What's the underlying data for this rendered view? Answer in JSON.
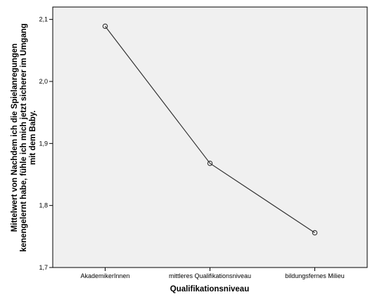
{
  "chart_data": {
    "type": "line",
    "categories": [
      "AkademikerInnen",
      "mittleres Qualifikationsniveau",
      "bildungsfernes Milieu"
    ],
    "values": [
      2.089,
      1.868,
      1.756
    ],
    "title": "",
    "xlabel": "Qualifikationsniveau",
    "ylabel_lines": [
      "Mittelwert von Nachdem ich die Spielanregungen",
      "kenengelernt habe, fühle ich mich jetzt sicherer im Umgang",
      "mit dem Baby."
    ],
    "ylim": [
      1.7,
      2.12
    ],
    "yticks": [
      1.7,
      1.8,
      1.9,
      2.0,
      2.1
    ],
    "ytick_labels": [
      "1,7",
      "1,8",
      "1,9",
      "2,0",
      "2,1"
    ],
    "grid": false,
    "plot_background": "#f0f0f0",
    "line_color": "#333333"
  }
}
